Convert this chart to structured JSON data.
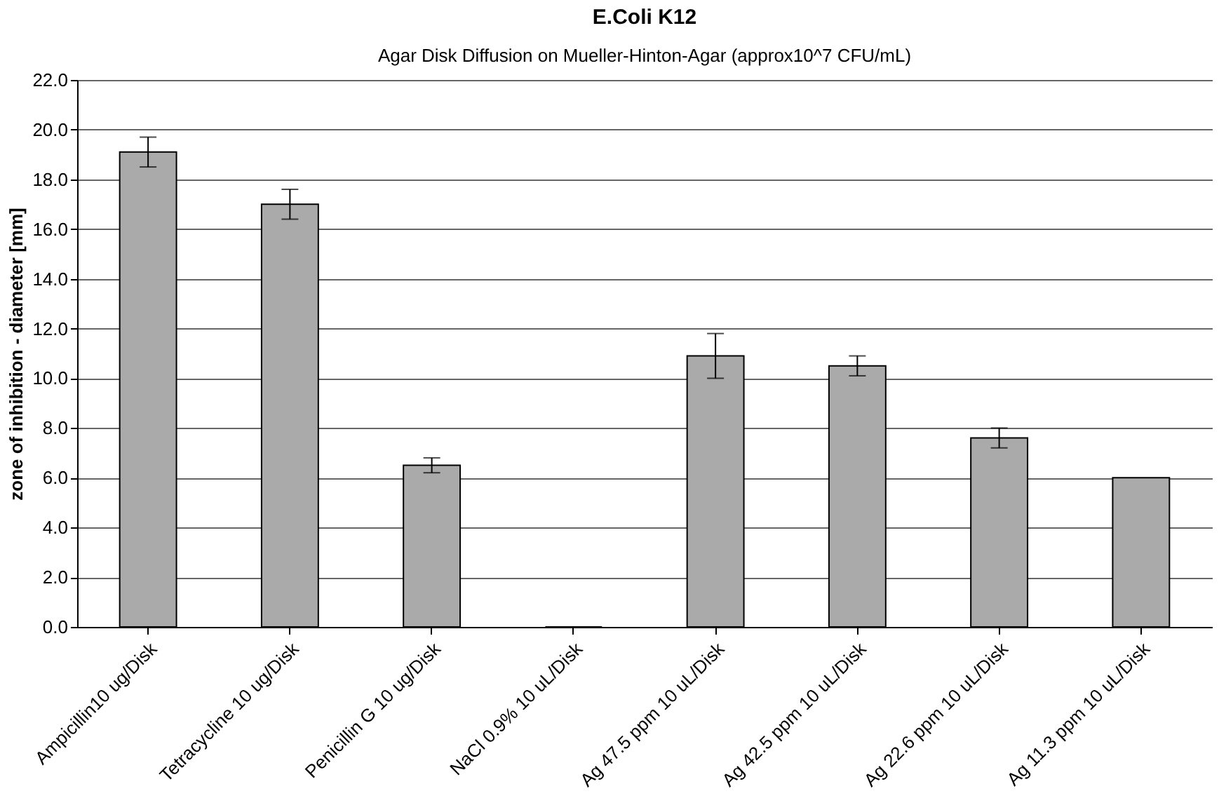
{
  "chart_data": {
    "type": "bar",
    "title": "E.Coli K12",
    "subtitle": "Agar Disk Diffusion on Mueller-Hinton-Agar (approx10^7 CFU/mL)",
    "ylabel": "zone of inhibition - diameter [mm]",
    "categories": [
      "Ampicillin10 ug/Disk",
      "Tetracycline 10 ug/Disk",
      "Penicillin G 10 ug/Disk",
      "NaCl 0.9% 10 uL/Disk",
      "Ag 47.5 ppm 10 uL/Disk",
      "Ag 42.5 ppm 10 uL/Disk",
      "Ag 22.6 ppm 10 uL/Disk",
      "Ag 11.3 ppm 10 uL/Disk"
    ],
    "values": [
      19.1,
      17.0,
      6.5,
      0.0,
      10.9,
      10.5,
      7.6,
      6.0
    ],
    "errors": [
      0.6,
      0.6,
      0.3,
      null,
      0.9,
      0.4,
      0.4,
      null
    ],
    "color": "#a9aaa9",
    "ylim": [
      0,
      22
    ],
    "yticks": [
      {
        "value": 0,
        "label": "0.0"
      },
      {
        "value": 2,
        "label": "2.0"
      },
      {
        "value": 4,
        "label": "4.0"
      },
      {
        "value": 6,
        "label": "6.0"
      },
      {
        "value": 8,
        "label": "8.0"
      },
      {
        "value": 10,
        "label": "10.0"
      },
      {
        "value": 12,
        "label": "12.0"
      },
      {
        "value": 14,
        "label": "14.0"
      },
      {
        "value": 16,
        "label": "16.0"
      },
      {
        "value": 18,
        "label": "18.0"
      },
      {
        "value": 20,
        "label": "20.0"
      },
      {
        "value": 22,
        "label": "22.0"
      }
    ],
    "grid": "y"
  }
}
